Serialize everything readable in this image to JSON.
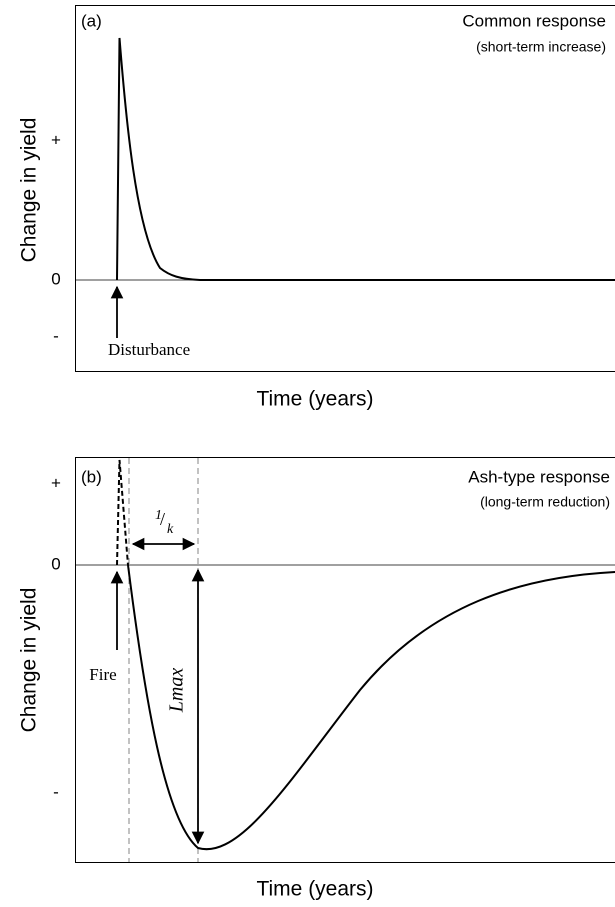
{
  "panels": [
    {
      "label": "(a)",
      "title": "Common response",
      "subtitle": "(short-term increase)",
      "y_label": "Change in yield",
      "y_ticks": [
        "+",
        "0",
        "-"
      ],
      "x_label": "Time (years)",
      "event": "Disturbance"
    },
    {
      "label": "(b)",
      "title": "Ash-type response",
      "subtitle": "(long-term reduction)",
      "y_label": "Change in yield",
      "y_ticks": [
        "+",
        "0",
        "-"
      ],
      "x_label": "Time (years)",
      "event": "Fire",
      "interval": {
        "numerator": "1",
        "denominator": "k"
      },
      "depth": "Lmax"
    }
  ]
}
